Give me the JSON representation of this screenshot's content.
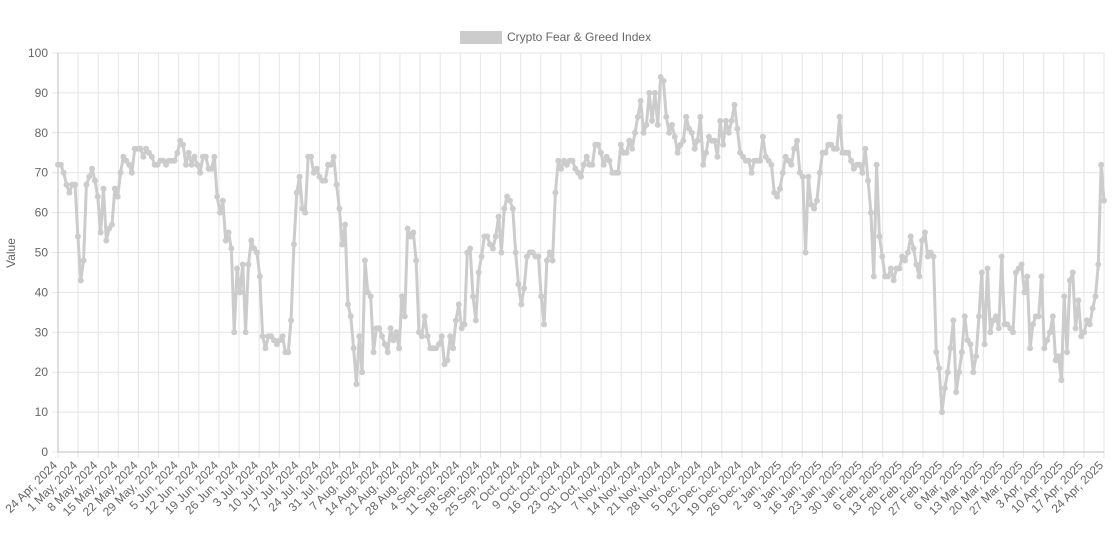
{
  "chart_data": {
    "type": "line",
    "title": "",
    "xlabel": "",
    "ylabel": "Value",
    "ylim": [
      0,
      100
    ],
    "yticks": [
      0,
      10,
      20,
      30,
      40,
      50,
      60,
      70,
      80,
      90,
      100
    ],
    "grid": true,
    "legend_position": "top-center",
    "series_color": "#cccccc",
    "x_ticks": [
      "24 Apr, 2024",
      "1 May, 2024",
      "8 May, 2024",
      "15 May, 2024",
      "22 May, 2024",
      "29 May, 2024",
      "5 Jun, 2024",
      "12 Jun, 2024",
      "19 Jun, 2024",
      "26 Jun, 2024",
      "3 Jul, 2024",
      "10 Jul, 2024",
      "17 Jul, 2024",
      "24 Jul, 2024",
      "31 Jul, 2024",
      "7 Aug, 2024",
      "14 Aug, 2024",
      "21 Aug, 2024",
      "28 Aug, 2024",
      "4 Sep, 2024",
      "11 Sep, 2024",
      "18 Sep, 2024",
      "25 Sep, 2024",
      "2 Oct, 2024",
      "9 Oct, 2024",
      "16 Oct, 2024",
      "23 Oct, 2024",
      "31 Oct, 2024",
      "7 Nov, 2024",
      "14 Nov, 2024",
      "21 Nov, 2024",
      "28 Nov, 2024",
      "5 Dec, 2024",
      "12 Dec, 2024",
      "19 Dec, 2024",
      "26 Dec, 2024",
      "2 Jan, 2025",
      "9 Jan, 2025",
      "16 Jan, 2025",
      "23 Jan, 2025",
      "30 Jan, 2025",
      "6 Feb, 2025",
      "13 Feb, 2025",
      "20 Feb, 2025",
      "27 Feb, 2025",
      "6 Mar, 2025",
      "13 Mar, 2025",
      "20 Mar, 2025",
      "27 Mar, 2025",
      "3 Apr, 2025",
      "10 Apr, 2025",
      "17 Apr, 2025",
      "24 Apr, 2025"
    ],
    "series": [
      {
        "name": "Crypto Fear & Greed Index",
        "values": [
          72,
          72,
          70,
          67,
          65,
          67,
          67,
          54,
          43,
          48,
          67,
          69,
          71,
          68,
          64,
          55,
          66,
          53,
          56,
          57,
          66,
          64,
          70,
          74,
          73,
          72,
          70,
          76,
          76,
          76,
          74,
          76,
          75,
          74,
          72,
          72,
          73,
          73,
          72,
          73,
          73,
          73,
          75,
          78,
          77,
          72,
          75,
          72,
          74,
          72,
          70,
          74,
          74,
          71,
          71,
          74,
          64,
          60,
          63,
          53,
          55,
          51,
          30,
          46,
          40,
          47,
          30,
          47,
          53,
          51,
          50,
          44,
          29,
          26,
          29,
          29,
          28,
          27,
          28,
          29,
          25,
          25,
          33,
          52,
          65,
          69,
          61,
          60,
          74,
          74,
          70,
          71,
          69,
          68,
          68,
          72,
          72,
          74,
          67,
          61,
          52,
          57,
          37,
          34,
          26,
          17,
          29,
          20,
          48,
          40,
          39,
          25,
          31,
          31,
          29,
          27,
          25,
          31,
          28,
          30,
          26,
          39,
          34,
          56,
          54,
          55,
          48,
          30,
          29,
          34,
          29,
          26,
          26,
          26,
          27,
          29,
          22,
          23,
          29,
          26,
          33,
          37,
          31,
          32,
          50,
          51,
          39,
          33,
          45,
          49,
          54,
          54,
          52,
          51,
          54,
          59,
          50,
          61,
          64,
          63,
          61,
          50,
          42,
          37,
          41,
          49,
          50,
          50,
          49,
          49,
          39,
          32,
          48,
          50,
          48,
          65,
          73,
          71,
          73,
          72,
          73,
          73,
          71,
          70,
          69,
          72,
          74,
          72,
          72,
          77,
          77,
          75,
          72,
          74,
          73,
          70,
          70,
          70,
          77,
          75,
          75,
          78,
          76,
          80,
          84,
          88,
          80,
          82,
          90,
          83,
          90,
          82,
          94,
          93,
          84,
          80,
          82,
          79,
          75,
          77,
          78,
          84,
          81,
          80,
          76,
          78,
          84,
          72,
          75,
          79,
          78,
          78,
          74,
          83,
          77,
          83,
          80,
          83,
          87,
          81,
          75,
          74,
          73,
          73,
          70,
          73,
          73,
          73,
          79,
          74,
          73,
          72,
          65,
          64,
          66,
          70,
          74,
          73,
          72,
          76,
          78,
          70,
          69,
          50,
          69,
          62,
          61,
          63,
          70,
          75,
          75,
          77,
          77,
          76,
          76,
          84,
          75,
          75,
          75,
          73,
          71,
          72,
          72,
          70,
          76,
          68,
          60,
          44,
          72,
          54,
          49,
          44,
          44,
          46,
          43,
          46,
          46,
          49,
          48,
          50,
          54,
          51,
          47,
          44,
          53,
          55,
          49,
          50,
          49,
          25,
          21,
          10,
          16,
          20,
          26,
          33,
          15,
          20,
          25,
          34,
          28,
          27,
          20,
          24,
          34,
          45,
          27,
          46,
          30,
          33,
          34,
          31,
          49,
          32,
          32,
          31,
          30,
          45,
          46,
          47,
          40,
          44,
          26,
          32,
          34,
          34,
          44,
          26,
          28,
          30,
          34,
          23,
          24,
          18,
          39,
          25,
          43,
          45,
          31,
          38,
          29,
          30,
          33,
          32,
          36,
          39,
          47,
          72,
          63
        ]
      }
    ]
  }
}
